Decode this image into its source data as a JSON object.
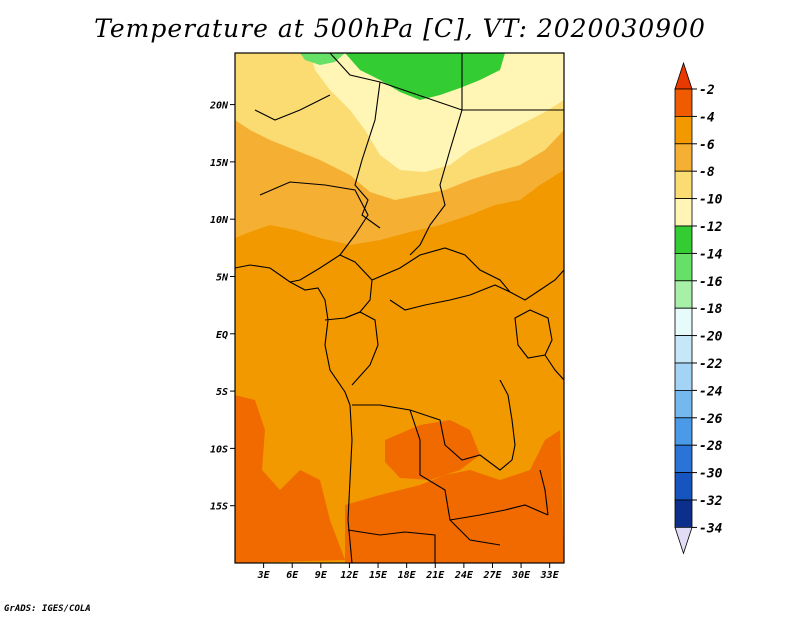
{
  "title": "Temperature at 500hPa [C], VT: 2020030900",
  "credit": "GrADS: IGES/COLA",
  "map": {
    "lat_labels": [
      "20N",
      "15N",
      "10N",
      "5N",
      "EQ",
      "5S",
      "10S",
      "15S"
    ],
    "lat_values": [
      20,
      15,
      10,
      5,
      0,
      -5,
      -10,
      -15
    ],
    "lon_labels": [
      "3E",
      "6E",
      "9E",
      "12E",
      "15E",
      "18E",
      "21E",
      "24E",
      "27E",
      "30E",
      "33E"
    ],
    "lon_values": [
      3,
      6,
      9,
      12,
      15,
      18,
      21,
      24,
      27,
      30,
      33
    ],
    "lon_range": [
      0,
      34.5
    ],
    "lat_range": [
      -20,
      24.5
    ]
  },
  "legend": {
    "labels": [
      "-2",
      "-4",
      "-6",
      "-8",
      "-10",
      "-12",
      "-14",
      "-16",
      "-18",
      "-20",
      "-22",
      "-24",
      "-26",
      "-28",
      "-30",
      "-32",
      "-34"
    ],
    "colors": [
      "#f05a00",
      "#f29900",
      "#f5b033",
      "#fadc73",
      "#fff5b5",
      "#33cc33",
      "#66e066",
      "#a8f0a8",
      "#e8fbfb",
      "#c5e7f7",
      "#a3d3f5",
      "#75b8f0",
      "#4a9ae8",
      "#2a74d8",
      "#1654c0",
      "#0b2f8a"
    ],
    "top_arrow_color": "#e83a00",
    "bottom_arrow_color": "#e3dcf7"
  }
}
